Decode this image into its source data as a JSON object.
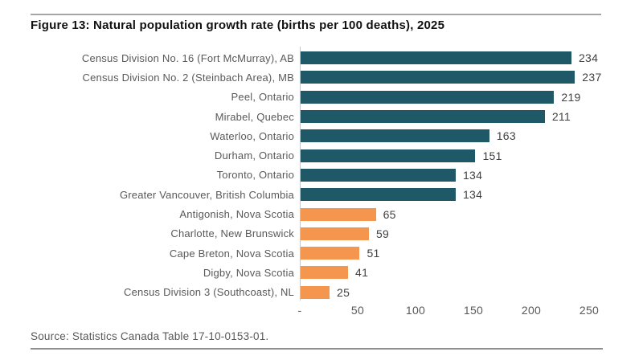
{
  "header": {
    "title": "Figure 13: Natural population growth rate (births per 100 deaths), 2025"
  },
  "chart_data": {
    "type": "bar",
    "orientation": "horizontal",
    "title": "Figure 13: Natural population growth rate (births per 100 deaths), 2025",
    "xlabel": "",
    "ylabel": "",
    "xlim": [
      0,
      250
    ],
    "grid": "off",
    "legend": "none",
    "data_labels": true,
    "categories": [
      "Census Division No. 16 (Fort McMurray), AB",
      "Census Division No. 2 (Steinbach Area), MB",
      "Peel, Ontario",
      "Mirabel, Quebec",
      "Waterloo, Ontario",
      "Durham, Ontario",
      "Toronto, Ontario",
      "Greater Vancouver, British Columbia",
      "Antigonish, Nova Scotia",
      "Charlotte, New Brunswick",
      "Cape Breton, Nova Scotia",
      "Digby, Nova Scotia",
      "Census Division 3 (Southcoast), NL"
    ],
    "values": [
      234,
      237,
      219,
      211,
      163,
      151,
      134,
      134,
      65,
      59,
      51,
      41,
      25
    ],
    "bar_colors": [
      "#1F5968",
      "#1F5968",
      "#1F5968",
      "#1F5968",
      "#1F5968",
      "#1F5968",
      "#1F5968",
      "#1F5968",
      "#F4964D",
      "#F4964D",
      "#F4964D",
      "#F4964D",
      "#F4964D"
    ],
    "color_legend": {
      "high_growth_group": "#1F5968",
      "low_growth_group": "#F4964D"
    },
    "x_tick_values": [
      0,
      50,
      100,
      150,
      200,
      250
    ],
    "x_tick_labels": [
      "-",
      "50",
      "100",
      "150",
      "200",
      "250"
    ]
  },
  "footer": {
    "source": "Source: Statistics Canada Table 17-10-0153-01."
  }
}
